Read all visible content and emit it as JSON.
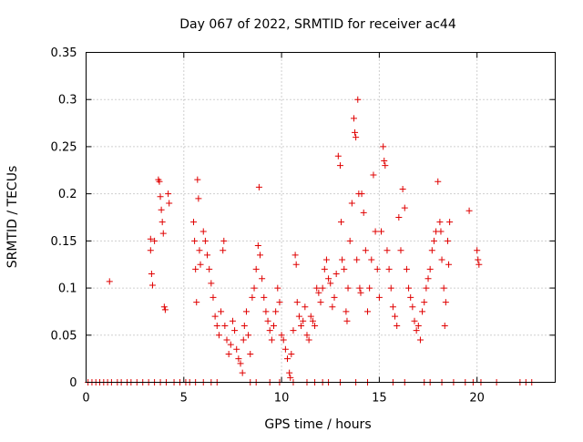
{
  "chart_data": {
    "type": "scatter",
    "title": "Day 067 of 2022, SRMTID for receiver ac44",
    "xlabel": "GPS time / hours",
    "ylabel": "SRMTID / TECUs",
    "xlim": [
      0,
      24
    ],
    "ylim": [
      0,
      0.35
    ],
    "xticks": [
      0,
      5,
      10,
      15,
      20
    ],
    "xtick_labels": [
      "0",
      "5",
      "10",
      "15",
      "20"
    ],
    "yticks": [
      0,
      0.05,
      0.1,
      0.15,
      0.2,
      0.25,
      0.3,
      0.35
    ],
    "ytick_labels": [
      "0",
      "0.05",
      "0.1",
      "0.15",
      "0.2",
      "0.25",
      "0.3",
      "0.35"
    ],
    "grid": true,
    "marker": "plus",
    "color": "#e00000",
    "series": [
      {
        "name": "SRMTID",
        "points": [
          [
            1.2,
            0.107
          ],
          [
            3.3,
            0.152
          ],
          [
            3.3,
            0.14
          ],
          [
            3.35,
            0.115
          ],
          [
            3.4,
            0.103
          ],
          [
            3.5,
            0.15
          ],
          [
            3.7,
            0.215
          ],
          [
            3.75,
            0.213
          ],
          [
            3.8,
            0.197
          ],
          [
            3.85,
            0.183
          ],
          [
            3.9,
            0.17
          ],
          [
            3.95,
            0.158
          ],
          [
            4.0,
            0.08
          ],
          [
            4.05,
            0.077
          ],
          [
            4.2,
            0.2
          ],
          [
            4.25,
            0.19
          ],
          [
            5.5,
            0.17
          ],
          [
            5.55,
            0.15
          ],
          [
            5.6,
            0.12
          ],
          [
            5.65,
            0.085
          ],
          [
            5.7,
            0.215
          ],
          [
            5.75,
            0.195
          ],
          [
            5.8,
            0.14
          ],
          [
            5.85,
            0.125
          ],
          [
            6.0,
            0.16
          ],
          [
            6.1,
            0.15
          ],
          [
            6.2,
            0.135
          ],
          [
            6.3,
            0.12
          ],
          [
            6.4,
            0.105
          ],
          [
            6.5,
            0.09
          ],
          [
            6.6,
            0.07
          ],
          [
            6.7,
            0.06
          ],
          [
            6.8,
            0.05
          ],
          [
            6.9,
            0.075
          ],
          [
            7.0,
            0.14
          ],
          [
            7.05,
            0.15
          ],
          [
            7.1,
            0.06
          ],
          [
            7.2,
            0.045
          ],
          [
            7.3,
            0.03
          ],
          [
            7.4,
            0.04
          ],
          [
            7.5,
            0.065
          ],
          [
            7.6,
            0.055
          ],
          [
            7.7,
            0.035
          ],
          [
            7.8,
            0.025
          ],
          [
            7.9,
            0.02
          ],
          [
            8.0,
            0.01
          ],
          [
            8.05,
            0.045
          ],
          [
            8.1,
            0.06
          ],
          [
            8.2,
            0.075
          ],
          [
            8.3,
            0.05
          ],
          [
            8.4,
            0.03
          ],
          [
            8.5,
            0.09
          ],
          [
            8.6,
            0.1
          ],
          [
            8.7,
            0.12
          ],
          [
            8.8,
            0.145
          ],
          [
            8.85,
            0.207
          ],
          [
            8.9,
            0.135
          ],
          [
            9.0,
            0.11
          ],
          [
            9.1,
            0.09
          ],
          [
            9.2,
            0.075
          ],
          [
            9.3,
            0.065
          ],
          [
            9.4,
            0.055
          ],
          [
            9.5,
            0.045
          ],
          [
            9.6,
            0.06
          ],
          [
            9.7,
            0.075
          ],
          [
            9.8,
            0.1
          ],
          [
            9.9,
            0.085
          ],
          [
            10.0,
            0.05
          ],
          [
            10.1,
            0.045
          ],
          [
            10.2,
            0.035
          ],
          [
            10.3,
            0.025
          ],
          [
            10.4,
            0.01
          ],
          [
            10.45,
            0.005
          ],
          [
            10.5,
            0.03
          ],
          [
            10.6,
            0.055
          ],
          [
            10.7,
            0.135
          ],
          [
            10.75,
            0.125
          ],
          [
            10.8,
            0.085
          ],
          [
            10.9,
            0.07
          ],
          [
            11.0,
            0.06
          ],
          [
            11.1,
            0.065
          ],
          [
            11.2,
            0.08
          ],
          [
            11.3,
            0.05
          ],
          [
            11.4,
            0.045
          ],
          [
            11.5,
            0.07
          ],
          [
            11.6,
            0.065
          ],
          [
            11.7,
            0.06
          ],
          [
            11.8,
            0.1
          ],
          [
            11.9,
            0.095
          ],
          [
            12.0,
            0.085
          ],
          [
            12.1,
            0.1
          ],
          [
            12.2,
            0.12
          ],
          [
            12.3,
            0.13
          ],
          [
            12.4,
            0.11
          ],
          [
            12.5,
            0.105
          ],
          [
            12.6,
            0.08
          ],
          [
            12.7,
            0.09
          ],
          [
            12.8,
            0.115
          ],
          [
            12.9,
            0.24
          ],
          [
            13.0,
            0.23
          ],
          [
            13.05,
            0.17
          ],
          [
            13.1,
            0.13
          ],
          [
            13.2,
            0.12
          ],
          [
            13.3,
            0.075
          ],
          [
            13.35,
            0.065
          ],
          [
            13.4,
            0.1
          ],
          [
            13.5,
            0.15
          ],
          [
            13.6,
            0.19
          ],
          [
            13.7,
            0.28
          ],
          [
            13.75,
            0.265
          ],
          [
            13.8,
            0.26
          ],
          [
            13.85,
            0.13
          ],
          [
            13.9,
            0.3
          ],
          [
            13.95,
            0.2
          ],
          [
            14.0,
            0.1
          ],
          [
            14.05,
            0.095
          ],
          [
            14.1,
            0.2
          ],
          [
            14.2,
            0.18
          ],
          [
            14.3,
            0.14
          ],
          [
            14.4,
            0.075
          ],
          [
            14.5,
            0.1
          ],
          [
            14.6,
            0.13
          ],
          [
            14.7,
            0.22
          ],
          [
            14.8,
            0.16
          ],
          [
            14.9,
            0.12
          ],
          [
            15.0,
            0.09
          ],
          [
            15.1,
            0.16
          ],
          [
            15.2,
            0.25
          ],
          [
            15.25,
            0.235
          ],
          [
            15.3,
            0.23
          ],
          [
            15.4,
            0.14
          ],
          [
            15.5,
            0.12
          ],
          [
            15.6,
            0.1
          ],
          [
            15.7,
            0.08
          ],
          [
            15.8,
            0.07
          ],
          [
            15.9,
            0.06
          ],
          [
            16.0,
            0.175
          ],
          [
            16.1,
            0.14
          ],
          [
            16.2,
            0.205
          ],
          [
            16.3,
            0.185
          ],
          [
            16.4,
            0.12
          ],
          [
            16.5,
            0.1
          ],
          [
            16.6,
            0.09
          ],
          [
            16.7,
            0.08
          ],
          [
            16.8,
            0.065
          ],
          [
            16.9,
            0.055
          ],
          [
            17.0,
            0.06
          ],
          [
            17.1,
            0.045
          ],
          [
            17.2,
            0.075
          ],
          [
            17.3,
            0.085
          ],
          [
            17.4,
            0.1
          ],
          [
            17.5,
            0.11
          ],
          [
            17.6,
            0.12
          ],
          [
            17.7,
            0.14
          ],
          [
            17.8,
            0.15
          ],
          [
            17.9,
            0.16
          ],
          [
            18.0,
            0.213
          ],
          [
            18.1,
            0.17
          ],
          [
            18.15,
            0.16
          ],
          [
            18.2,
            0.13
          ],
          [
            18.3,
            0.1
          ],
          [
            18.35,
            0.06
          ],
          [
            18.4,
            0.085
          ],
          [
            18.5,
            0.15
          ],
          [
            18.55,
            0.125
          ],
          [
            18.6,
            0.17
          ],
          [
            19.6,
            0.182
          ],
          [
            20.0,
            0.14
          ],
          [
            20.05,
            0.13
          ],
          [
            20.1,
            0.125
          ]
        ]
      },
      {
        "name": "SRMTID zero",
        "points": [
          [
            0.1,
            0
          ],
          [
            0.3,
            0
          ],
          [
            0.5,
            0
          ],
          [
            0.7,
            0
          ],
          [
            0.9,
            0
          ],
          [
            1.1,
            0
          ],
          [
            1.3,
            0
          ],
          [
            1.6,
            0
          ],
          [
            1.8,
            0
          ],
          [
            2.1,
            0
          ],
          [
            2.3,
            0
          ],
          [
            2.6,
            0
          ],
          [
            2.9,
            0
          ],
          [
            3.2,
            0
          ],
          [
            3.5,
            0
          ],
          [
            3.8,
            0
          ],
          [
            4.1,
            0
          ],
          [
            4.5,
            0
          ],
          [
            4.8,
            0
          ],
          [
            5.1,
            0
          ],
          [
            5.3,
            0
          ],
          [
            5.6,
            0
          ],
          [
            6.0,
            0
          ],
          [
            6.4,
            0
          ],
          [
            6.7,
            0
          ],
          [
            8.4,
            0
          ],
          [
            8.7,
            0
          ],
          [
            9.4,
            0
          ],
          [
            9.9,
            0
          ],
          [
            10.6,
            0
          ],
          [
            11.3,
            0
          ],
          [
            11.7,
            0
          ],
          [
            12.1,
            0
          ],
          [
            12.4,
            0
          ],
          [
            13.0,
            0
          ],
          [
            13.8,
            0
          ],
          [
            14.4,
            0
          ],
          [
            15.7,
            0
          ],
          [
            16.3,
            0
          ],
          [
            17.3,
            0
          ],
          [
            17.6,
            0
          ],
          [
            18.2,
            0
          ],
          [
            18.8,
            0
          ],
          [
            19.4,
            0
          ],
          [
            19.8,
            0
          ],
          [
            20.2,
            0
          ],
          [
            21.0,
            0
          ],
          [
            22.2,
            0
          ],
          [
            22.5,
            0
          ],
          [
            22.8,
            0
          ]
        ]
      }
    ]
  }
}
